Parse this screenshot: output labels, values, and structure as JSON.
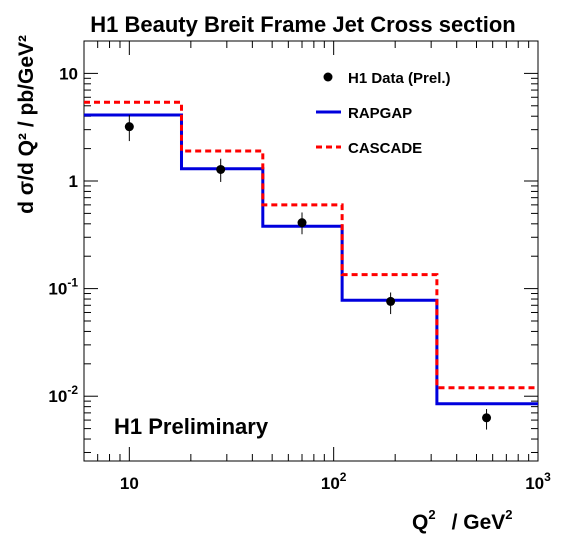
{
  "chart_data": {
    "type": "line",
    "title": "H1 Beauty Breit Frame Jet Cross section",
    "xlabel": "Q",
    "xlabel_sup": "2",
    "xlabel_unit": "/ GeV",
    "xlabel_unit_sup": "2",
    "ylabel": "d σ/d Q² / pb/GeV²",
    "annotation": "H1 Preliminary",
    "x_scale": "log",
    "y_scale": "log",
    "xlim": [
      6,
      1000
    ],
    "ylim": [
      0.0025,
      20
    ],
    "x_ticks": [
      {
        "value": 10,
        "base": "10",
        "exp": ""
      },
      {
        "value": 100,
        "base": "10",
        "exp": "2"
      },
      {
        "value": 1000,
        "base": "10",
        "exp": "3"
      }
    ],
    "y_ticks": [
      {
        "value": 0.01,
        "base": "10",
        "exp": "-2"
      },
      {
        "value": 0.1,
        "base": "10",
        "exp": "-1"
      },
      {
        "value": 1,
        "base": "1",
        "exp": ""
      },
      {
        "value": 10,
        "base": "10",
        "exp": ""
      }
    ],
    "bin_edges": [
      6,
      18,
      45,
      110,
      320,
      1000
    ],
    "series": [
      {
        "name": "H1 Data (Prel.)",
        "kind": "points",
        "color": "#000000",
        "x": [
          10,
          28,
          70,
          190,
          560
        ],
        "y": [
          3.2,
          1.28,
          0.41,
          0.076,
          0.0063
        ],
        "err_low": [
          0.85,
          0.3,
          0.09,
          0.018,
          0.0014
        ],
        "err_high": [
          0.9,
          0.33,
          0.1,
          0.016,
          0.0013
        ]
      },
      {
        "name": "RAPGAP",
        "kind": "histogram",
        "color": "#0000dd",
        "style": "solid",
        "values": [
          4.1,
          1.3,
          0.38,
          0.078,
          0.0085
        ]
      },
      {
        "name": "CASCADE",
        "kind": "histogram",
        "color": "#ff0000",
        "style": "dashed",
        "values": [
          5.4,
          1.9,
          0.6,
          0.135,
          0.012
        ]
      }
    ],
    "legend_position": "top-right",
    "grid": false
  }
}
